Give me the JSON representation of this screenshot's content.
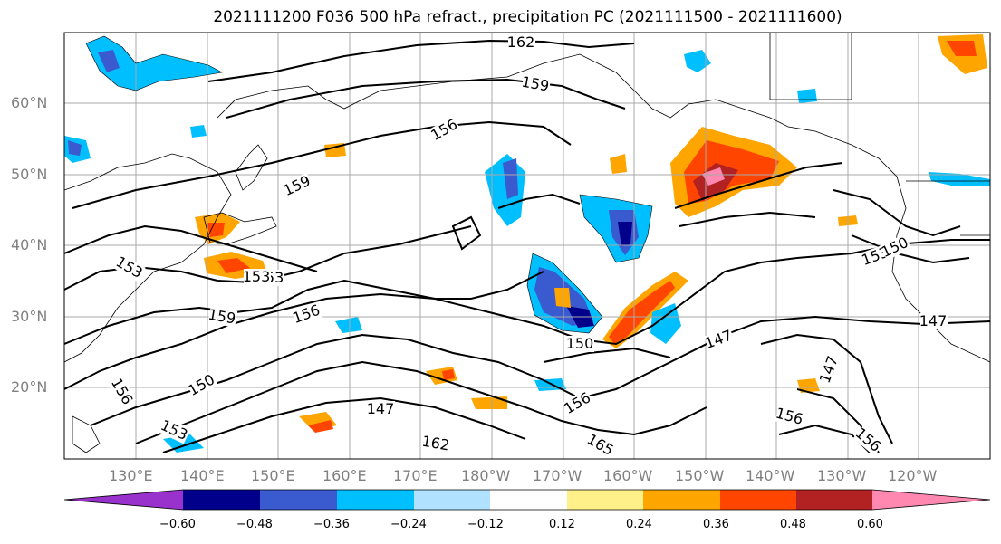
{
  "title": "2021111200 F036 500 hPa refract., precipitation PC (2021111500 - 2021111600)",
  "lat_labels": [
    "60°N",
    "50°N",
    "40°N",
    "30°N",
    "20°N"
  ],
  "lon_labels": [
    "130°E",
    "140°E",
    "150°E",
    "160°E",
    "170°E",
    "180°W",
    "170°W",
    "160°W",
    "150°W",
    "140°W",
    "130°W",
    "120°W"
  ],
  "contour_labels": [
    "162",
    "159",
    "156",
    "159",
    "153",
    "159",
    "156",
    "153",
    "153",
    "150",
    "147",
    "147",
    "150",
    "156",
    "153",
    "147",
    "156",
    "162",
    "165",
    "153",
    "150",
    "156",
    "156",
    "147"
  ],
  "colorbar": {
    "ticks": [
      "−0.60",
      "−0.48",
      "−0.36",
      "−0.24",
      "−0.12",
      "0.12",
      "0.24",
      "0.36",
      "0.48",
      "0.60"
    ],
    "colors": [
      "#9932cc",
      "#00008b",
      "#3a5bd0",
      "#00bfff",
      "#b0e2ff",
      "#ffffff",
      "#fff08a",
      "#ffa500",
      "#ff4500",
      "#b22222",
      "#ff88b0"
    ]
  },
  "colors": {
    "grid": "#a9a9a9",
    "contour": "#000000",
    "axis_label": "#808080"
  }
}
